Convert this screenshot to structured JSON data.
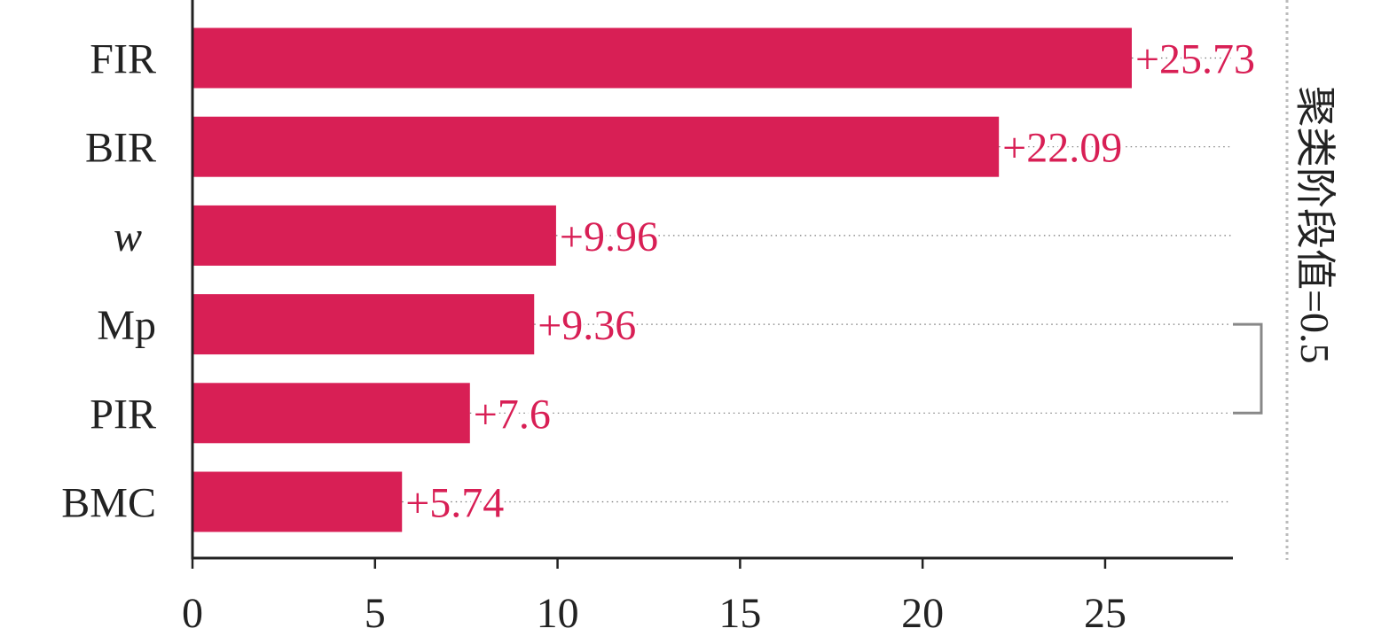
{
  "chart_data": {
    "type": "bar",
    "orientation": "horizontal",
    "categories": [
      "FIR",
      "BIR",
      "w",
      "Mp",
      "PIR",
      "BMC"
    ],
    "values": [
      25.73,
      22.09,
      9.96,
      9.36,
      7.6,
      5.74
    ],
    "value_labels": [
      "+25.73",
      "+22.09",
      "+9.96",
      "+9.36",
      "+7.6",
      "+5.74"
    ],
    "italic_categories": [
      "w"
    ],
    "x_ticks": [
      0,
      5,
      10,
      15,
      20,
      25
    ],
    "xlim": [
      0,
      28.5
    ],
    "bar_color": "#d81f55",
    "label_color": "#d81f55",
    "grid": false,
    "threshold_label": "聚类阶段值=0.5",
    "bracket_categories": [
      "Mp",
      "PIR"
    ]
  }
}
